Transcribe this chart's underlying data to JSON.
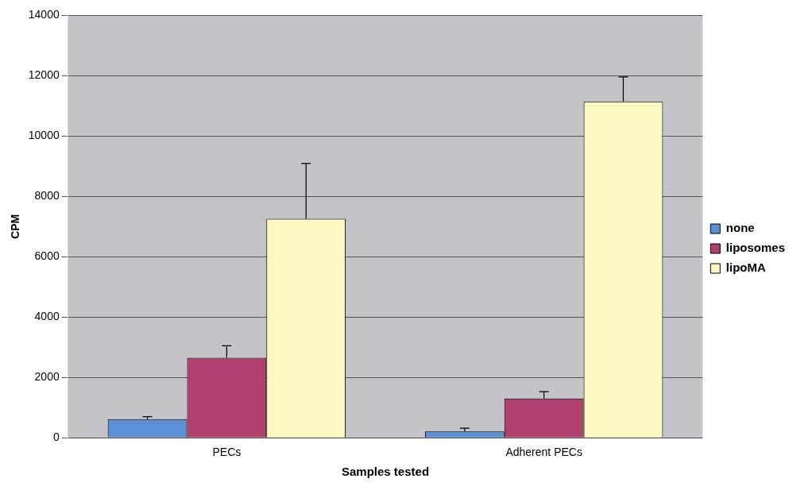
{
  "chart_data": {
    "type": "bar",
    "xlabel": "Samples tested",
    "ylabel": "CPM",
    "categories": [
      "PECs",
      "Adherent PECs"
    ],
    "series": [
      {
        "name": "none",
        "color": "#5b8fd6",
        "values": [
          620,
          210
        ],
        "errors": [
          [
            620,
            700
          ],
          [
            210,
            320
          ]
        ]
      },
      {
        "name": "liposomes",
        "color": "#b0406e",
        "values": [
          2650,
          1300
        ],
        "errors": [
          [
            2650,
            3050
          ],
          [
            1300,
            1530
          ]
        ]
      },
      {
        "name": "lipoMA",
        "color": "#fff7c0",
        "values": [
          7260,
          11150
        ],
        "errors": [
          [
            7260,
            9090
          ],
          [
            11150,
            11960
          ]
        ]
      }
    ],
    "ylim": [
      0,
      14000
    ],
    "yticks": [
      0,
      2000,
      4000,
      6000,
      8000,
      10000,
      12000,
      14000
    ],
    "grid": "y",
    "legend": "right"
  }
}
